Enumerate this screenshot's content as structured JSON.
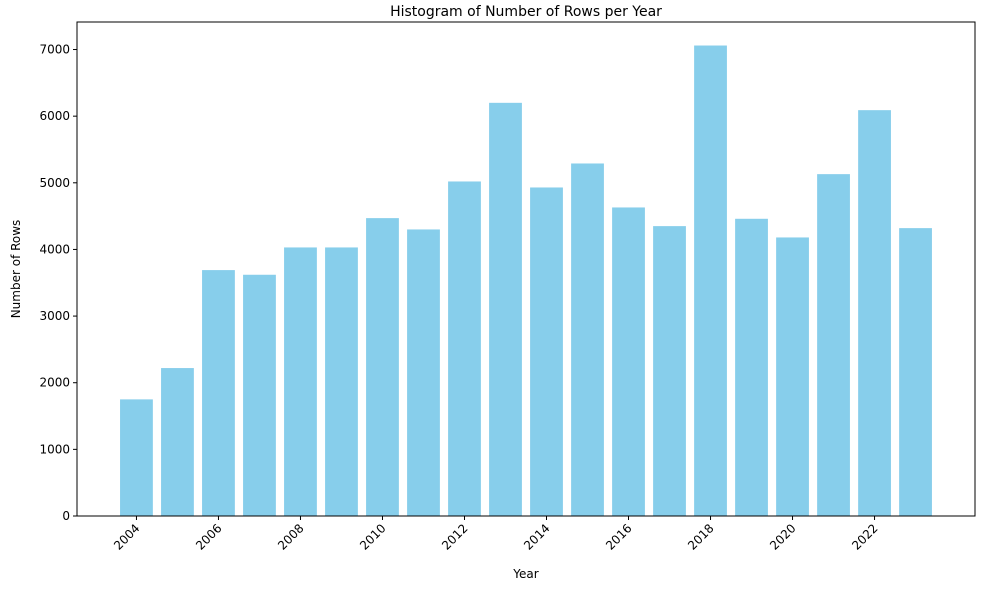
{
  "chart_data": {
    "type": "bar",
    "title": "Histogram of Number of Rows per Year",
    "xlabel": "Year",
    "ylabel": "Number of Rows",
    "x": [
      2004,
      2005,
      2006,
      2007,
      2008,
      2009,
      2010,
      2011,
      2012,
      2013,
      2014,
      2015,
      2016,
      2017,
      2018,
      2019,
      2020,
      2021,
      2022,
      2023
    ],
    "values": [
      1750,
      2220,
      3690,
      3620,
      4030,
      4030,
      4470,
      4300,
      5020,
      6200,
      4930,
      5290,
      4630,
      4350,
      7060,
      4460,
      4180,
      5130,
      6090,
      4320
    ],
    "xticks": [
      2004,
      2006,
      2008,
      2010,
      2012,
      2014,
      2016,
      2018,
      2020,
      2022
    ],
    "yticks": [
      0,
      1000,
      2000,
      3000,
      4000,
      5000,
      6000,
      7000
    ],
    "xlim": [
      2002.55,
      2024.45
    ],
    "ylim": [
      0,
      7413
    ],
    "bar_color": "#87ceeb",
    "grid": false,
    "legend": "none"
  }
}
